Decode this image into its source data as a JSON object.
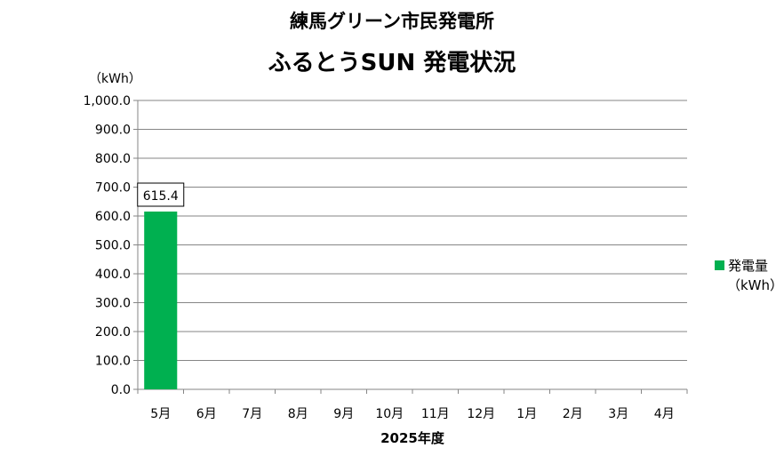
{
  "chart_data": {
    "type": "bar",
    "title": "練馬グリーン市民発電所",
    "subtitle": "ふるとうSUN 発電状況",
    "xlabel": "2025年度",
    "ylabel_unit": "（kWh）",
    "categories": [
      "5月",
      "6月",
      "7月",
      "8月",
      "9月",
      "10月",
      "11月",
      "12月",
      "1月",
      "2月",
      "3月",
      "4月"
    ],
    "series": [
      {
        "name": "発電量",
        "unit": "（kWh）",
        "color": "#00b050",
        "values": [
          615.4,
          null,
          null,
          null,
          null,
          null,
          null,
          null,
          null,
          null,
          null,
          null
        ],
        "data_labels": [
          "615.4",
          "",
          "",
          "",
          "",
          "",
          "",
          "",
          "",
          "",
          "",
          ""
        ]
      }
    ],
    "ylim": [
      0,
      1000
    ],
    "yticks": [
      "0.0",
      "100.0",
      "200.0",
      "300.0",
      "400.0",
      "500.0",
      "600.0",
      "700.0",
      "800.0",
      "900.0",
      "1,000.0"
    ],
    "ytick_values": [
      0,
      100,
      200,
      300,
      400,
      500,
      600,
      700,
      800,
      900,
      1000
    ],
    "grid": true,
    "legend_position": "right"
  }
}
